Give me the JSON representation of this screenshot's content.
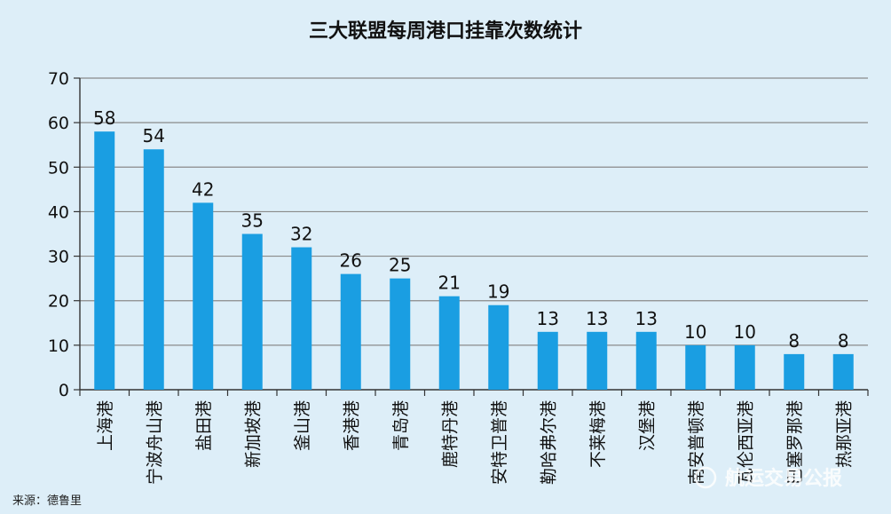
{
  "chart_data": {
    "type": "bar",
    "title": "三大联盟每周港口挂靠次数统计",
    "categories": [
      "上海港",
      "宁波舟山港",
      "盐田港",
      "新加坡港",
      "釜山港",
      "香港港",
      "青岛港",
      "鹿特丹港",
      "安特卫普港",
      "勒哈弗尔港",
      "不莱梅港",
      "汉堡港",
      "南安普顿港",
      "瓦伦西亚港",
      "巴塞罗那港",
      "热那亚港"
    ],
    "values": [
      58,
      54,
      42,
      35,
      32,
      26,
      25,
      21,
      19,
      13,
      13,
      13,
      10,
      10,
      8,
      8
    ],
    "ylim": [
      0,
      70
    ],
    "yticks": [
      0,
      10,
      20,
      30,
      40,
      50,
      60,
      70
    ],
    "xlabel": "",
    "ylabel": "",
    "grid": true,
    "bar_color": "#1a9ee2",
    "legend": "none"
  },
  "source": "来源：德鲁里",
  "watermark": "航运交易公报"
}
